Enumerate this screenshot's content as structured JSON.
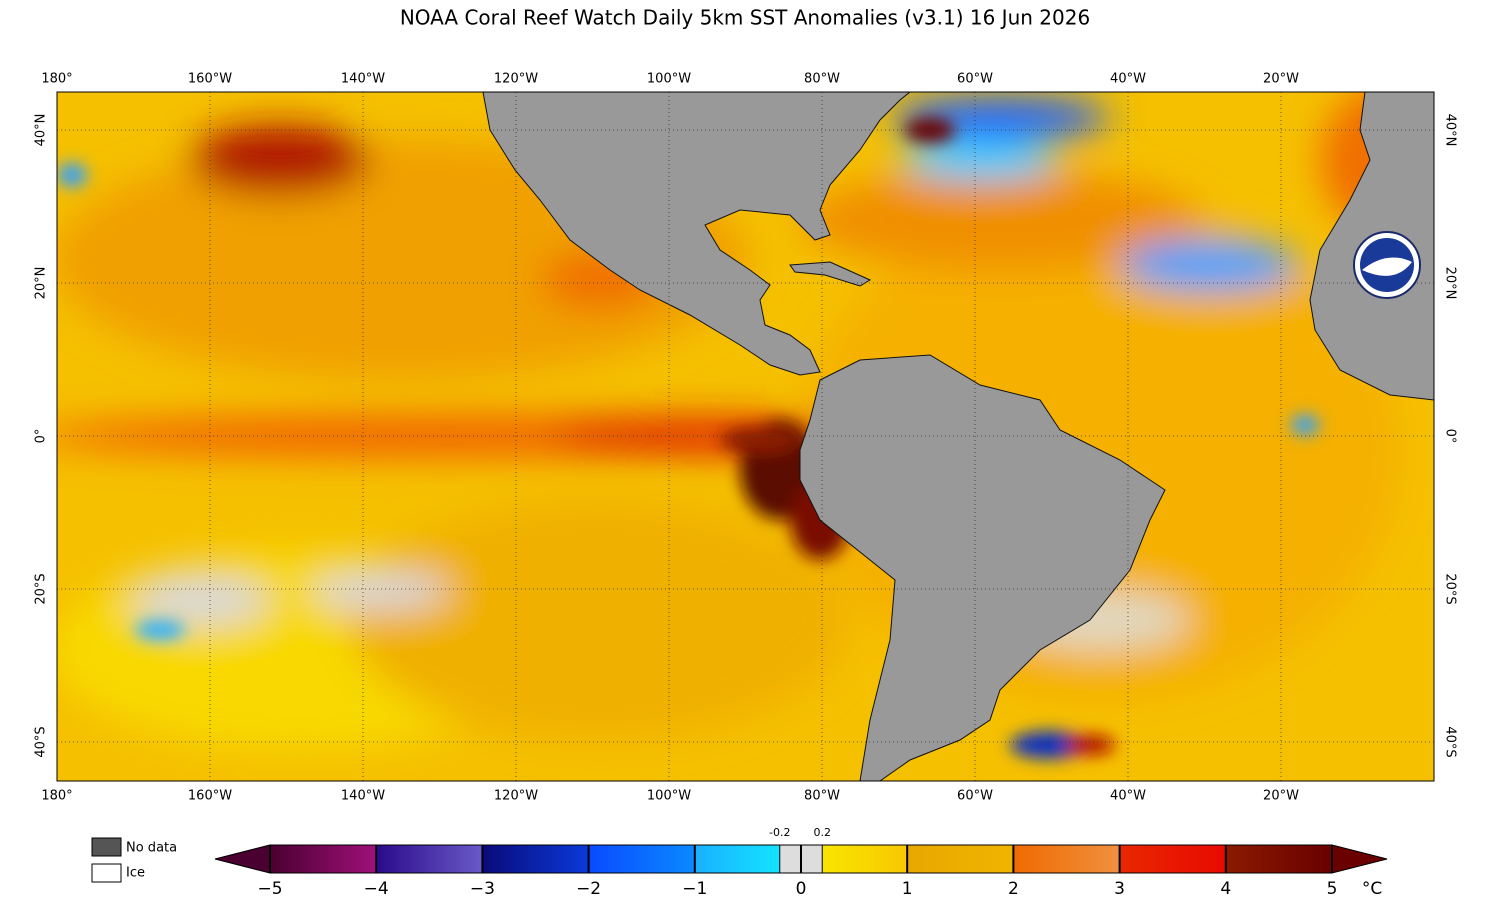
{
  "title": "NOAA Coral Reef Watch Daily 5km SST Anomalies  (v3.1)   16 Jun 2026",
  "longitudes": [
    {
      "value": -180,
      "label": "180°"
    },
    {
      "value": -160,
      "label": "160°W"
    },
    {
      "value": -140,
      "label": "140°W"
    },
    {
      "value": -120,
      "label": "120°W"
    },
    {
      "value": -100,
      "label": "100°W"
    },
    {
      "value": -80,
      "label": "80°W"
    },
    {
      "value": -60,
      "label": "60°W"
    },
    {
      "value": -40,
      "label": "40°W"
    },
    {
      "value": -20,
      "label": "20°W"
    }
  ],
  "latitudes": [
    {
      "value": 40,
      "label": "40°N"
    },
    {
      "value": 20,
      "label": "20°N"
    },
    {
      "value": 0,
      "label": "0°"
    },
    {
      "value": -20,
      "label": "20°S"
    },
    {
      "value": -40,
      "label": "40°S"
    }
  ],
  "legend": {
    "no_data": "No data",
    "ice": "Ice"
  },
  "colorbar": {
    "ticks": [
      {
        "value": -5,
        "label": "−5"
      },
      {
        "value": -4,
        "label": "−4"
      },
      {
        "value": -3,
        "label": "−3"
      },
      {
        "value": -2,
        "label": "−2"
      },
      {
        "value": -1,
        "label": "−1"
      },
      0,
      1,
      2,
      3,
      4,
      5
    ],
    "neutral": [
      {
        "value": -0.2,
        "label": "-0.2"
      },
      {
        "value": 0.2,
        "label": "0.2"
      }
    ],
    "unit": "°C",
    "colors": [
      [
        "#4a0030",
        "#a0107a"
      ],
      [
        "#2a0a8a",
        "#6a5ac8"
      ],
      [
        "#0a0a7a",
        "#0a3ad8"
      ],
      [
        "#0a4aff",
        "#0a8aff"
      ],
      [
        "#1ab0ff",
        "#10f0ff"
      ],
      [
        "#f8ec00",
        "#f8c800"
      ],
      [
        "#e8a800",
        "#f0b400"
      ],
      [
        "#f06a00",
        "#f09040"
      ],
      [
        "#e82800",
        "#e80a00"
      ],
      [
        "#8a1a00",
        "#6a0000"
      ]
    ]
  }
}
